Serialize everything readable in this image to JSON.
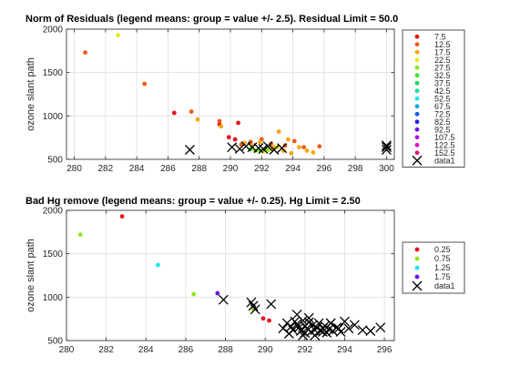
{
  "chart_data": [
    {
      "type": "scatter",
      "title": "Norm of Residuals (legend means: group = value +/- 2.5). Residual Limit = 50.0",
      "xlabel": "",
      "ylabel": "ozone slant path",
      "xlim": [
        279.5,
        300.5
      ],
      "ylim": [
        500,
        2000
      ],
      "xticks": [
        280,
        282,
        284,
        286,
        288,
        290,
        292,
        294,
        296,
        298,
        300
      ],
      "yticks": [
        500,
        1000,
        1500,
        2000
      ],
      "grid": true,
      "legend_position": "outside-right",
      "series": [
        {
          "name": "7.5",
          "color": "#e8141b",
          "marker": "dot",
          "x": [
            286.4,
            289.3,
            289.9,
            290.3,
            290.5
          ],
          "y": [
            1035,
            905,
            755,
            730,
            920
          ]
        },
        {
          "name": "12.5",
          "color": "#ef5a16",
          "marker": "dot",
          "x": [
            280.7,
            284.5,
            287.5,
            289.3,
            290.7,
            291.3,
            292.0,
            292.6,
            293.5,
            294.1,
            294.7,
            295.7
          ],
          "y": [
            1730,
            1370,
            1050,
            940,
            670,
            700,
            730,
            680,
            660,
            710,
            640,
            650
          ]
        },
        {
          "name": "17.5",
          "color": "#f5a60e",
          "marker": "dot",
          "x": [
            287.9,
            289.4,
            290.9,
            291.4,
            291.9,
            292.3,
            292.8,
            293.1,
            293.4,
            293.7,
            293.9,
            294.4,
            294.9,
            295.3
          ],
          "y": [
            960,
            880,
            690,
            650,
            700,
            620,
            640,
            820,
            600,
            730,
            570,
            640,
            600,
            580
          ]
        },
        {
          "name": "22.5",
          "color": "#e6eb14",
          "marker": "dot",
          "x": [
            282.8,
            292.1,
            292.6,
            293.0
          ],
          "y": [
            1930,
            590,
            620,
            640
          ]
        },
        {
          "name": "27.5",
          "color": "#8ee81a",
          "marker": "dot",
          "x": [
            291.6,
            292.4
          ],
          "y": [
            600,
            610
          ]
        },
        {
          "name": "32.5",
          "color": "#3fe12a",
          "marker": "dot",
          "x": [
            291.3,
            291.9
          ],
          "y": [
            620,
            600
          ]
        },
        {
          "name": "37.5",
          "color": "#19d95e",
          "marker": "dot",
          "x": [],
          "y": []
        },
        {
          "name": "42.5",
          "color": "#18d7a3",
          "marker": "dot",
          "x": [],
          "y": []
        },
        {
          "name": "52.5",
          "color": "#1ee6e6",
          "marker": "dot",
          "x": [],
          "y": []
        },
        {
          "name": "67.5",
          "color": "#16a6ea",
          "marker": "dot",
          "x": [],
          "y": []
        },
        {
          "name": "72.5",
          "color": "#155ee8",
          "marker": "dot",
          "x": [],
          "y": []
        },
        {
          "name": "82.5",
          "color": "#2a1ee6",
          "marker": "dot",
          "x": [],
          "y": []
        },
        {
          "name": "92.5",
          "color": "#6a14e0",
          "marker": "dot",
          "x": [],
          "y": []
        },
        {
          "name": "107.5",
          "color": "#b014dc",
          "marker": "dot",
          "x": [],
          "y": []
        },
        {
          "name": "122.5",
          "color": "#e012c8",
          "marker": "dot",
          "x": [],
          "y": []
        },
        {
          "name": "152.5",
          "color": "#e8127e",
          "marker": "dot",
          "x": [],
          "y": []
        },
        {
          "name": "data1",
          "color": "#000000",
          "marker": "x",
          "x": [
            287.4,
            290.1,
            290.6,
            291.0,
            291.4,
            291.8,
            292.1,
            292.4,
            292.8,
            293.3,
            300.0,
            300.0,
            300.0
          ],
          "y": [
            610,
            640,
            620,
            650,
            640,
            630,
            620,
            650,
            610,
            630,
            660,
            640,
            610
          ]
        }
      ]
    },
    {
      "type": "scatter",
      "title": "Bad Hg remove (legend means: group = value +/- 0.25). Hg Limit = 2.50",
      "xlabel": "",
      "ylabel": "ozone slant path",
      "xlim": [
        280,
        296.5
      ],
      "ylim": [
        500,
        2000
      ],
      "xticks": [
        280,
        282,
        284,
        286,
        288,
        290,
        292,
        294,
        296
      ],
      "yticks": [
        500,
        1000,
        1500,
        2000
      ],
      "grid": true,
      "legend_position": "outside-right",
      "series": [
        {
          "name": "0.25",
          "color": "#e8141b",
          "marker": "dot",
          "x": [
            282.8,
            289.9,
            290.2
          ],
          "y": [
            1930,
            755,
            730
          ]
        },
        {
          "name": "0.75",
          "color": "#8ee81a",
          "marker": "dot",
          "x": [
            280.7,
            286.4,
            289.4
          ],
          "y": [
            1720,
            1035,
            860
          ]
        },
        {
          "name": "1.25",
          "color": "#1ee6e6",
          "marker": "dot",
          "x": [
            284.6
          ],
          "y": [
            1370
          ]
        },
        {
          "name": "1.75",
          "color": "#6a14e0",
          "marker": "dot",
          "x": [
            287.6
          ],
          "y": [
            1045
          ]
        },
        {
          "name": "data1",
          "color": "#000000",
          "marker": "x",
          "x": [
            287.9,
            289.3,
            289.4,
            289.5,
            290.3,
            290.9,
            291.1,
            291.3,
            291.4,
            291.5,
            291.6,
            291.7,
            291.8,
            291.9,
            292.0,
            292.0,
            292.1,
            292.2,
            292.3,
            292.4,
            292.5,
            292.6,
            292.7,
            292.8,
            292.9,
            293.0,
            293.1,
            293.2,
            293.3,
            293.4,
            293.6,
            293.8,
            294.0,
            294.2,
            294.5,
            294.9,
            295.3,
            295.8,
            291.2,
            291.6,
            292.2,
            292.5,
            292.9,
            293.3,
            293.7,
            291.9
          ],
          "y": [
            970,
            940,
            900,
            860,
            920,
            640,
            700,
            660,
            620,
            720,
            690,
            650,
            610,
            730,
            670,
            590,
            640,
            710,
            600,
            680,
            620,
            650,
            700,
            610,
            640,
            670,
            590,
            630,
            700,
            610,
            650,
            600,
            720,
            640,
            680,
            620,
            610,
            650,
            580,
            800,
            760,
            560,
            600,
            700,
            640,
            560
          ]
        }
      ]
    }
  ]
}
